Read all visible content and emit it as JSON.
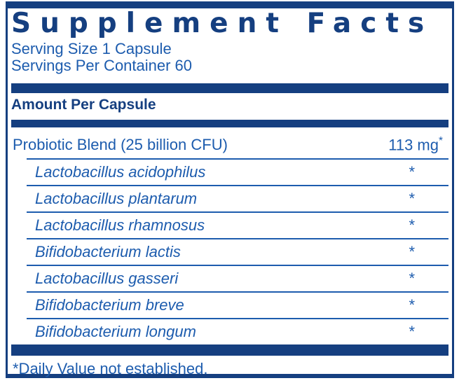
{
  "label": {
    "title": "Supplement Facts",
    "serving_size": "Serving Size 1 Capsule",
    "servings_per_container": "Servings Per Container 60",
    "column_header": "Amount Per Capsule",
    "blend": {
      "name": "Probiotic Blend (25 billion CFU)",
      "amount": "113 mg",
      "dv_symbol": "*"
    },
    "ingredients": [
      {
        "name": "Lactobacillus acidophilus",
        "dv": "*"
      },
      {
        "name": "Lactobacillus plantarum",
        "dv": "*"
      },
      {
        "name": "Lactobacillus rhamnosus",
        "dv": "*"
      },
      {
        "name": "Bifidobacterium lactis",
        "dv": "*"
      },
      {
        "name": "Lactobacillus gasseri",
        "dv": "*"
      },
      {
        "name": "Bifidobacterium breve",
        "dv": "*"
      },
      {
        "name": "Bifidobacterium longum",
        "dv": "*"
      }
    ],
    "footnote": "*Daily Value not established.",
    "colors": {
      "navy": "#153F80",
      "blue": "#1D5CAE"
    }
  }
}
